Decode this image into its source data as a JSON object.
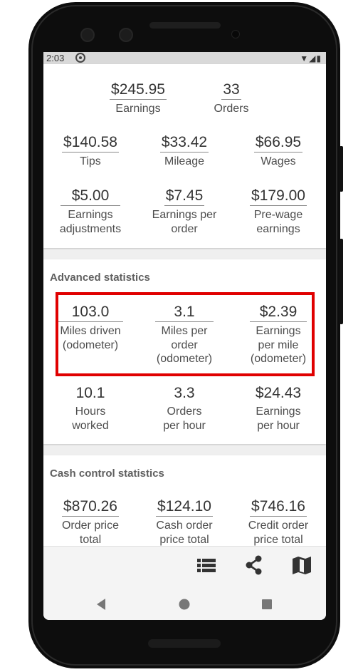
{
  "status_bar": {
    "time": "2:03"
  },
  "summary": {
    "earnings": {
      "value": "$245.95",
      "label": "Earnings"
    },
    "orders": {
      "value": "33",
      "label": "Orders"
    },
    "tips": {
      "value": "$140.58",
      "label": "Tips"
    },
    "mileage": {
      "value": "$33.42",
      "label": "Mileage"
    },
    "wages": {
      "value": "$66.95",
      "label": "Wages"
    },
    "adjustments": {
      "value": "$5.00",
      "label": "Earnings adjustments"
    },
    "per_order": {
      "value": "$7.45",
      "label": "Earnings per order"
    },
    "pre_wage": {
      "value": "$179.00",
      "label": "Pre-wage earnings"
    }
  },
  "advanced": {
    "title": "Advanced statistics",
    "miles_driven": {
      "value": "103.0",
      "label": "Miles driven (odometer)"
    },
    "miles_per_order": {
      "value": "3.1",
      "label": "Miles per order (odometer)"
    },
    "earnings_per_mile": {
      "value": "$2.39",
      "label": "Earnings per mile (odometer)"
    },
    "hours_worked": {
      "value": "10.1",
      "label": "Hours worked"
    },
    "orders_per_hour": {
      "value": "3.3",
      "label": "Orders per hour"
    },
    "earnings_per_hour": {
      "value": "$24.43",
      "label": "Earnings per hour"
    }
  },
  "cash": {
    "title": "Cash control statistics",
    "order_price_total": {
      "value": "$870.26",
      "label": "Order price total"
    },
    "cash_order_price_total": {
      "value": "$124.10",
      "label": "Cash order price total"
    },
    "credit_order_price_total": {
      "value": "$746.16",
      "label": "Credit order price total"
    }
  },
  "icons": {
    "list": "list-icon",
    "share": "share-icon",
    "map": "map-icon",
    "back": "back-icon",
    "home": "home-icon",
    "recents": "recents-icon"
  },
  "colors": {
    "highlight": "#e00000",
    "phone_body": "#0d0d0d"
  }
}
